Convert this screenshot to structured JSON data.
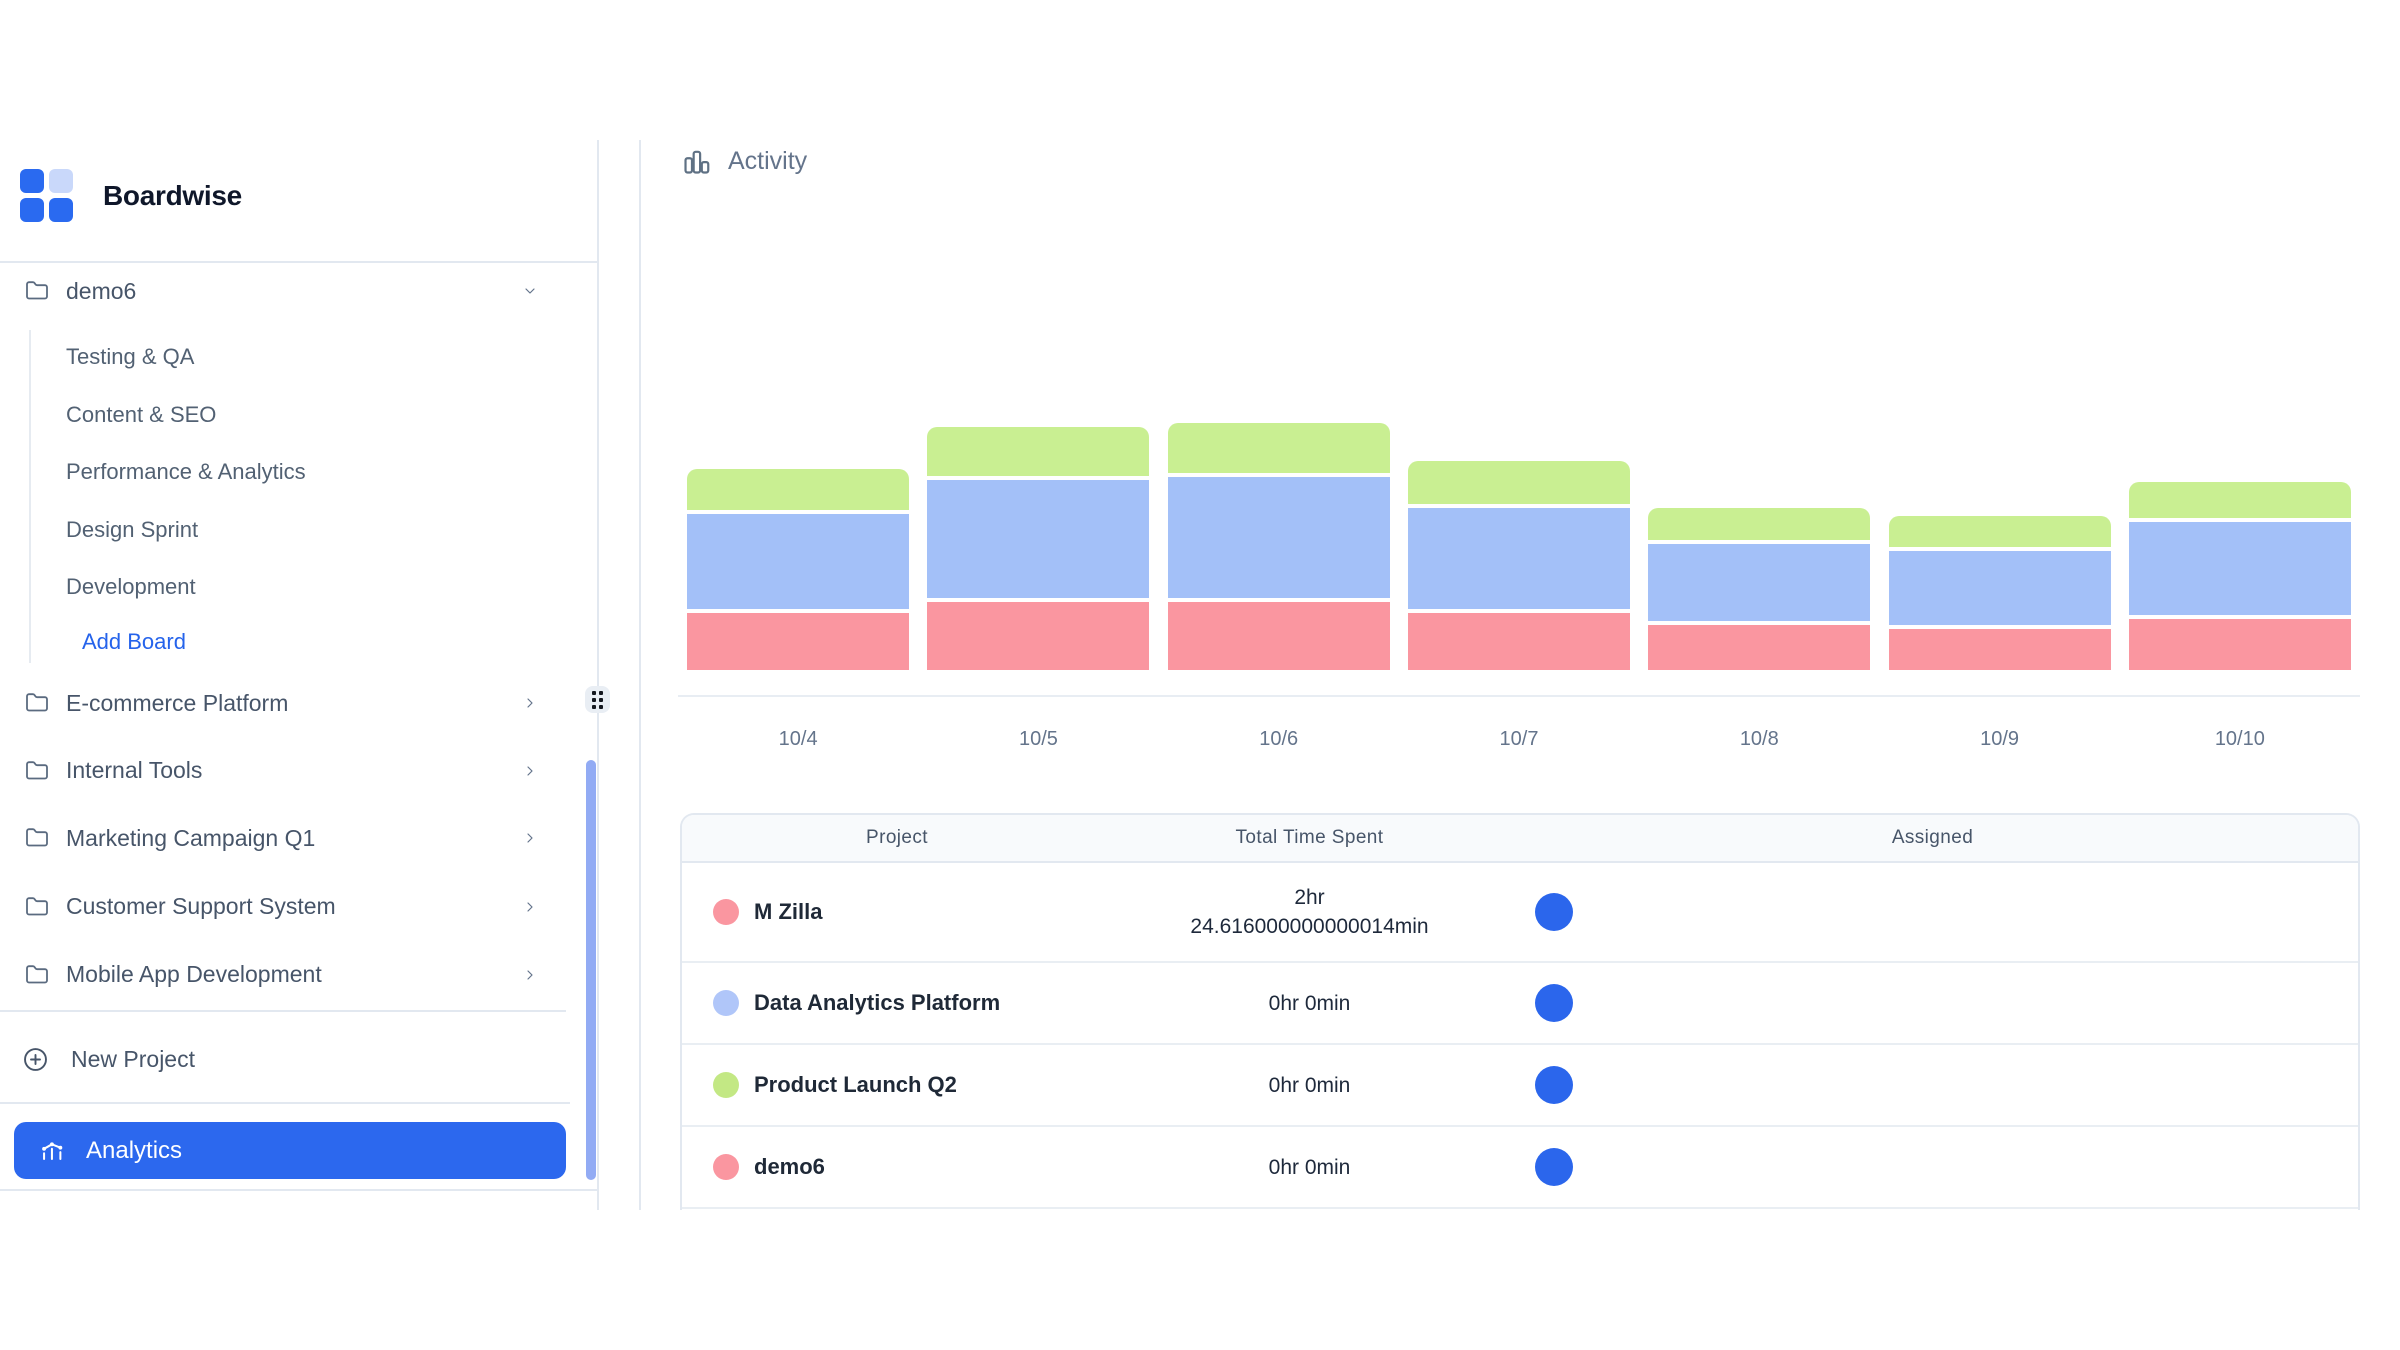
{
  "brand": {
    "name": "Boardwise"
  },
  "sidebar": {
    "projects": [
      {
        "name": "demo6",
        "state": "expanded",
        "boards": [
          "Testing & QA",
          "Content & SEO",
          "Performance & Analytics",
          "Design Sprint",
          "Development"
        ],
        "add_board_label": "Add Board"
      },
      {
        "name": "E-commerce Platform",
        "state": "collapsed"
      },
      {
        "name": "Internal Tools",
        "state": "collapsed"
      },
      {
        "name": "Marketing Campaign Q1",
        "state": "collapsed"
      },
      {
        "name": "Customer Support System",
        "state": "collapsed"
      },
      {
        "name": "Mobile App Development",
        "state": "collapsed"
      }
    ],
    "new_project_label": "New Project",
    "analytics_label": "Analytics",
    "analytics_active": true
  },
  "main": {
    "activity_title": "Activity"
  },
  "chart_data": {
    "type": "bar",
    "stacked": true,
    "title": "Activity",
    "categories": [
      "10/4",
      "10/5",
      "10/6",
      "10/7",
      "10/8",
      "10/9",
      "10/10"
    ],
    "series": [
      {
        "name": "M Zilla",
        "color": "#fa96a0",
        "values": [
          57,
          68,
          68,
          57,
          45,
          41,
          51
        ]
      },
      {
        "name": "Data Analytics Platform",
        "color": "#a3c0f8",
        "values": [
          95,
          118,
          121,
          101,
          77,
          74,
          93
        ]
      },
      {
        "name": "Product Launch Q2",
        "color": "#c9ef92",
        "values": [
          41,
          49,
          50,
          43,
          32,
          31,
          36
        ]
      }
    ],
    "value_unit": "relative bar height (no y-axis labels shown in chart)",
    "xlabel": "",
    "ylabel": "",
    "grid": false,
    "legend": false
  },
  "table": {
    "headers": [
      "Project",
      "Total Time Spent",
      "Assigned"
    ],
    "rows": [
      {
        "project": "M Zilla",
        "dot_color": "#fa96a0",
        "time_lines": [
          "2hr",
          "24.616000000000014min"
        ],
        "assigned_avatars": 1
      },
      {
        "project": "Data Analytics Platform",
        "dot_color": "#b0c6f9",
        "time_lines": [
          "0hr 0min"
        ],
        "assigned_avatars": 1
      },
      {
        "project": "Product Launch Q2",
        "dot_color": "#c3e884",
        "time_lines": [
          "0hr 0min"
        ],
        "assigned_avatars": 1
      },
      {
        "project": "demo6",
        "dot_color": "#fa96a0",
        "time_lines": [
          "0hr 0min"
        ],
        "assigned_avatars": 1
      }
    ]
  },
  "colors": {
    "accent_blue": "#2c68ee",
    "logo_blue": "#2a6af0",
    "logo_light_blue": "#c9d8fa",
    "add_board_link": "#2563eb",
    "border": "#e2e8f0",
    "muted_text": "#64748b",
    "scroll_thumb": "#92abf4",
    "avatar_blue": "#2b66ec",
    "table_header_bg": "#f8fafc"
  },
  "icons": [
    "app-logo",
    "folder-icon",
    "chevron-down-icon",
    "chevron-right-icon",
    "plus-circle-icon",
    "analytics-icon",
    "bar-chart-icon",
    "grip-dots-icon"
  ]
}
